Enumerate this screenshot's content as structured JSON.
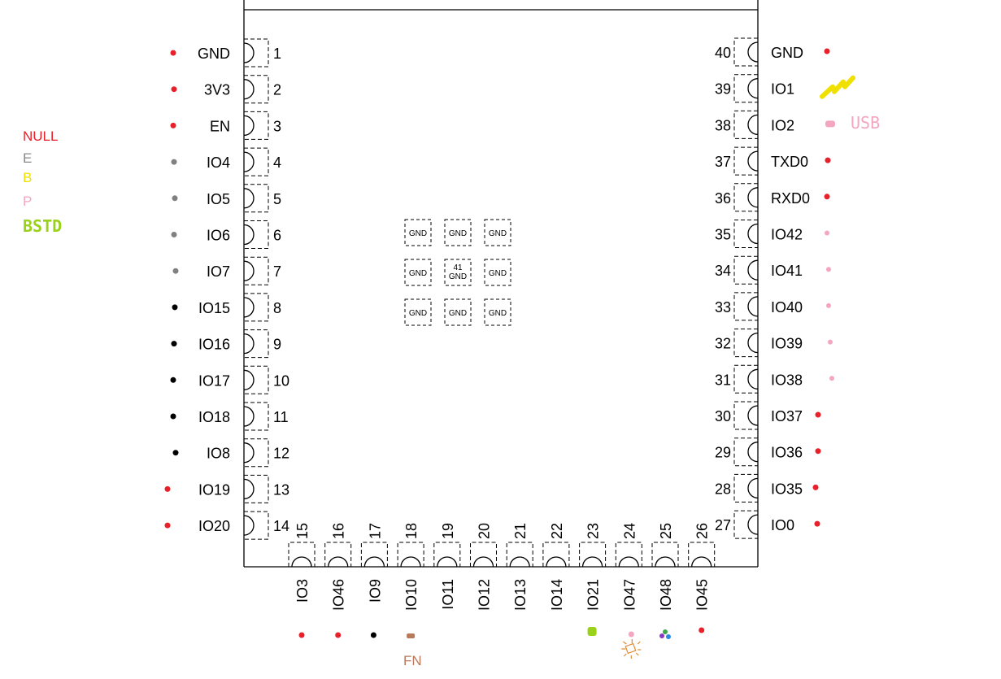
{
  "legend": [
    {
      "label": "NULL",
      "color": "#e8202a"
    },
    {
      "label": "E",
      "color": "#8a8a8a"
    },
    {
      "label": "B",
      "color": "#f0e000"
    },
    {
      "label": "P",
      "color": "#f4a6c0"
    },
    {
      "label": "BSTD",
      "color": "#9ad11a"
    }
  ],
  "colors": {
    "null": "#e8202a",
    "gray": "#808080",
    "black": "#000000",
    "pink": "#f4a6c0",
    "green": "#9ad11a",
    "yellow": "#f0e000",
    "brown": "#b87a5a",
    "orange": "#e08a30"
  },
  "left_pins": [
    {
      "num": "1",
      "name": "GND",
      "marker": "#e8202a"
    },
    {
      "num": "2",
      "name": "3V3",
      "marker": "#e8202a"
    },
    {
      "num": "3",
      "name": "EN",
      "marker": "#e8202a"
    },
    {
      "num": "4",
      "name": "IO4",
      "marker": "#808080"
    },
    {
      "num": "5",
      "name": "IO5",
      "marker": "#808080"
    },
    {
      "num": "6",
      "name": "IO6",
      "marker": "#808080"
    },
    {
      "num": "7",
      "name": "IO7",
      "marker": "#808080"
    },
    {
      "num": "8",
      "name": "IO15",
      "marker": "#000000"
    },
    {
      "num": "9",
      "name": "IO16",
      "marker": "#000000"
    },
    {
      "num": "10",
      "name": "IO17",
      "marker": "#000000"
    },
    {
      "num": "11",
      "name": "IO18",
      "marker": "#000000"
    },
    {
      "num": "12",
      "name": "IO8",
      "marker": "#000000"
    },
    {
      "num": "13",
      "name": "IO19",
      "marker": "#e8202a"
    },
    {
      "num": "14",
      "name": "IO20",
      "marker": "#e8202a"
    }
  ],
  "right_pins": [
    {
      "num": "40",
      "name": "GND",
      "marker": "#e8202a"
    },
    {
      "num": "39",
      "name": "IO1",
      "marker": "squiggle"
    },
    {
      "num": "38",
      "name": "IO2",
      "marker": "usb"
    },
    {
      "num": "37",
      "name": "TXD0",
      "marker": "#e8202a"
    },
    {
      "num": "36",
      "name": "RXD0",
      "marker": "#e8202a"
    },
    {
      "num": "35",
      "name": "IO42",
      "marker": "#f4a6c0"
    },
    {
      "num": "34",
      "name": "IO41",
      "marker": "#f4a6c0"
    },
    {
      "num": "33",
      "name": "IO40",
      "marker": "#f4a6c0"
    },
    {
      "num": "32",
      "name": "IO39",
      "marker": "#f4a6c0"
    },
    {
      "num": "31",
      "name": "IO38",
      "marker": "#f4a6c0"
    },
    {
      "num": "30",
      "name": "IO37",
      "marker": "#e8202a"
    },
    {
      "num": "29",
      "name": "IO36",
      "marker": "#e8202a"
    },
    {
      "num": "28",
      "name": "IO35",
      "marker": "#e8202a"
    },
    {
      "num": "27",
      "name": "IO0",
      "marker": "#e8202a"
    }
  ],
  "bottom_pins": [
    {
      "num": "15",
      "name": "IO3",
      "marker": "#e8202a"
    },
    {
      "num": "16",
      "name": "IO46",
      "marker": "#e8202a"
    },
    {
      "num": "17",
      "name": "IO9",
      "marker": "#000000"
    },
    {
      "num": "18",
      "name": "IO10",
      "marker": "brown"
    },
    {
      "num": "19",
      "name": "IO11",
      "marker": ""
    },
    {
      "num": "20",
      "name": "IO12",
      "marker": ""
    },
    {
      "num": "21",
      "name": "IO13",
      "marker": ""
    },
    {
      "num": "22",
      "name": "IO14",
      "marker": ""
    },
    {
      "num": "23",
      "name": "IO21",
      "marker": "green-blob"
    },
    {
      "num": "24",
      "name": "IO47",
      "marker": "led"
    },
    {
      "num": "25",
      "name": "IO48",
      "marker": "rgb"
    },
    {
      "num": "26",
      "name": "IO45",
      "marker": "#e8202a"
    }
  ],
  "center_pads": [
    [
      "GND",
      "GND",
      "GND"
    ],
    [
      "GND",
      "41\nGND",
      "GND"
    ],
    [
      "GND",
      "GND",
      "GND"
    ]
  ],
  "usb_label": "USB",
  "fn_label": "FN"
}
